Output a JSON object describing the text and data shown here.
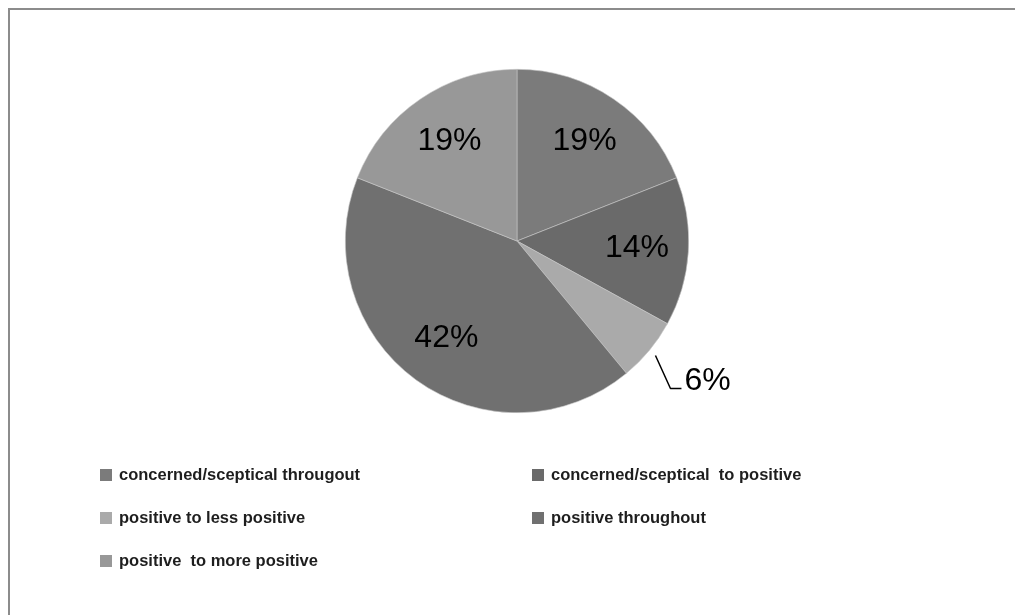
{
  "chart_data": {
    "type": "pie",
    "categories": [
      "concerned/sceptical througout",
      "concerned/sceptical  to positive",
      "positive to less positive",
      "positive throughout",
      "positive  to more positive"
    ],
    "values": [
      19,
      14,
      6,
      42,
      19
    ],
    "value_labels": [
      "19%",
      "14%",
      "6%",
      "42%",
      "19%"
    ],
    "colors": [
      "#7b7b7b",
      "#6a6a6a",
      "#aaaaaa",
      "#707070",
      "#989898"
    ],
    "legend": "bottom"
  }
}
